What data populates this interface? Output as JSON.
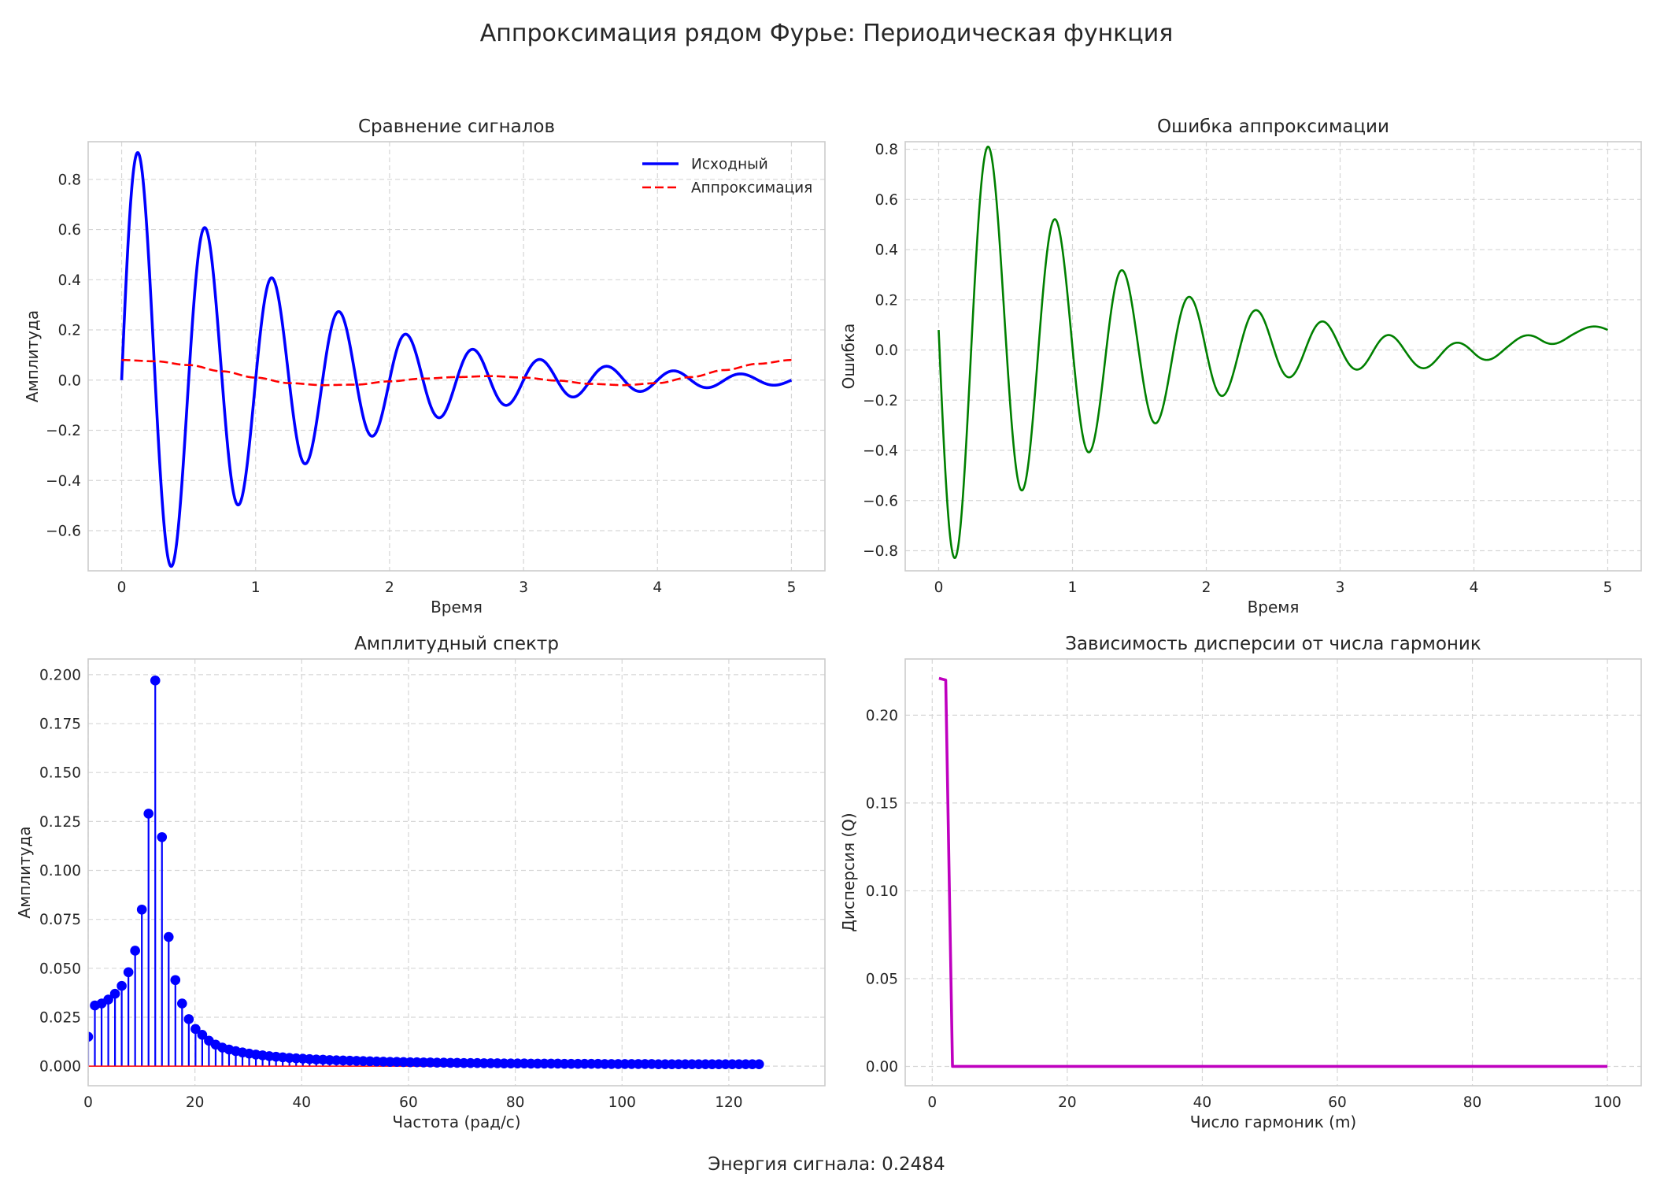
{
  "figure": {
    "suptitle": "Аппроксимация рядом Фурье: Периодическая функция",
    "footer": "Энергия сигнала: 0.2484"
  },
  "chart_data": [
    {
      "id": "signals",
      "type": "line",
      "title": "Сравнение сигналов",
      "xlabel": "Время",
      "ylabel": "Амплитуда",
      "xlim": [
        -0.25,
        5.25
      ],
      "ylim": [
        -0.76,
        0.95
      ],
      "xticks": [
        0,
        1,
        2,
        3,
        4,
        5
      ],
      "yticks": [
        -0.6,
        -0.4,
        -0.2,
        0.0,
        0.2,
        0.4,
        0.6,
        0.8
      ],
      "grid": true,
      "legend": "upper-right",
      "series": [
        {
          "name": "Исходный",
          "color": "#0000ff",
          "style": "solid",
          "model": "damped-sine",
          "params": {
            "amp": 1.0,
            "decay": 0.8,
            "freq_rad": 12.566
          }
        },
        {
          "name": "Аппроксимация",
          "color": "#ff0000",
          "style": "dashed",
          "model": "low-harmonics",
          "points": [
            [
              0,
              0.08
            ],
            [
              0.25,
              0.075
            ],
            [
              0.5,
              0.06
            ],
            [
              0.75,
              0.035
            ],
            [
              1.0,
              0.01
            ],
            [
              1.25,
              -0.012
            ],
            [
              1.5,
              -0.02
            ],
            [
              1.75,
              -0.018
            ],
            [
              2.0,
              -0.005
            ],
            [
              2.25,
              0.006
            ],
            [
              2.5,
              0.012
            ],
            [
              2.75,
              0.016
            ],
            [
              3.0,
              0.01
            ],
            [
              3.25,
              -0.002
            ],
            [
              3.5,
              -0.015
            ],
            [
              3.75,
              -0.02
            ],
            [
              4.0,
              -0.012
            ],
            [
              4.25,
              0.012
            ],
            [
              4.5,
              0.04
            ],
            [
              4.75,
              0.065
            ],
            [
              5.0,
              0.08
            ]
          ]
        }
      ]
    },
    {
      "id": "error",
      "type": "line",
      "title": "Ошибка аппроксимации",
      "xlabel": "Время",
      "ylabel": "Ошибка",
      "xlim": [
        -0.25,
        5.25
      ],
      "ylim": [
        -0.88,
        0.83
      ],
      "xticks": [
        0,
        1,
        2,
        3,
        4,
        5
      ],
      "yticks": [
        -0.8,
        -0.6,
        -0.4,
        -0.2,
        0.0,
        0.2,
        0.4,
        0.6,
        0.8
      ],
      "grid": true,
      "series": [
        {
          "name": "",
          "color": "#008000",
          "style": "solid",
          "model": "approx-minus-original"
        }
      ]
    },
    {
      "id": "spectrum",
      "type": "stem",
      "title": "Амплитудный спектр",
      "xlabel": "Частота (рад/с)",
      "ylabel": "Амплитуда",
      "xlim": [
        0,
        138
      ],
      "ylim": [
        -0.01,
        0.208
      ],
      "xticks": [
        0,
        20,
        40,
        60,
        80,
        100,
        120
      ],
      "yticks": [
        0.0,
        0.025,
        0.05,
        0.075,
        0.1,
        0.125,
        0.15,
        0.175,
        0.2
      ],
      "ytick_labels": [
        "0.000",
        "0.025",
        "0.050",
        "0.075",
        "0.100",
        "0.125",
        "0.150",
        "0.175",
        "0.200"
      ],
      "grid": true,
      "color": "#0000ff",
      "freq_step": 1.2566,
      "values": [
        0.015,
        0.031,
        0.032,
        0.034,
        0.037,
        0.041,
        0.048,
        0.059,
        0.08,
        0.129,
        0.197,
        0.117,
        0.066,
        0.044,
        0.032,
        0.024,
        0.019,
        0.016,
        0.013,
        0.011,
        0.0095,
        0.0085,
        0.0077,
        0.007,
        0.0064,
        0.0059,
        0.0055,
        0.0051,
        0.0048,
        0.0045,
        0.0042,
        0.004,
        0.0038,
        0.0036,
        0.0034,
        0.0033,
        0.0031,
        0.003,
        0.0029,
        0.0028,
        0.0027,
        0.0026,
        0.0025,
        0.0024,
        0.0023,
        0.0022,
        0.0022,
        0.0021,
        0.002,
        0.002,
        0.0019,
        0.0019,
        0.0018,
        0.0018,
        0.0017,
        0.0017,
        0.0016,
        0.0016,
        0.0016,
        0.0015,
        0.0015,
        0.0015,
        0.0014,
        0.0014,
        0.0014,
        0.0014,
        0.0013,
        0.0013,
        0.0013,
        0.0013,
        0.0013,
        0.0012,
        0.0012,
        0.0012,
        0.0012,
        0.0012,
        0.0012,
        0.0011,
        0.0011,
        0.0011,
        0.0011,
        0.0011,
        0.0011,
        0.0011,
        0.0011,
        0.001,
        0.001,
        0.001,
        0.001,
        0.001,
        0.001,
        0.001,
        0.001,
        0.001,
        0.001,
        0.001,
        0.001,
        0.001,
        0.001,
        0.001,
        0.001
      ]
    },
    {
      "id": "variance",
      "type": "line",
      "title": "Зависимость дисперсии от числа гармоник",
      "xlabel": "Число гармоник (m)",
      "ylabel": "Дисперсия (Q)",
      "xlim": [
        -4,
        105
      ],
      "ylim": [
        -0.011,
        0.232
      ],
      "xticks": [
        0,
        20,
        40,
        60,
        80,
        100
      ],
      "yticks": [
        0.0,
        0.05,
        0.1,
        0.15,
        0.2
      ],
      "ytick_labels": [
        "0.00",
        "0.05",
        "0.10",
        "0.15",
        "0.20"
      ],
      "grid": true,
      "series": [
        {
          "name": "",
          "color": "#bf00bf",
          "style": "solid",
          "points": [
            [
              1,
              0.221
            ],
            [
              2,
              0.22
            ],
            [
              3,
              0.0
            ],
            [
              100,
              0.0
            ]
          ]
        }
      ]
    }
  ]
}
